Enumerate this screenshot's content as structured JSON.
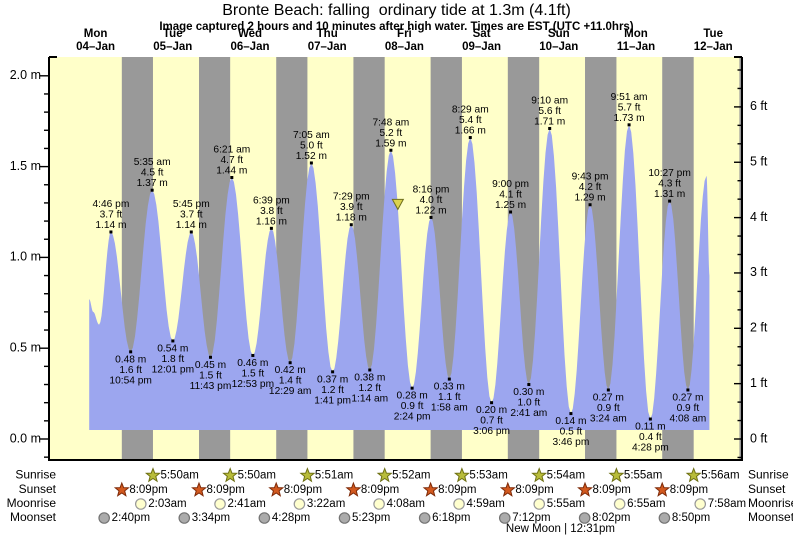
{
  "title": "Bronte Beach: falling  ordinary tide at 1.3m (4.1ft)",
  "subtitle": "Image captured 2 hours and 10 minutes after high water. Times are EST (UTC +11.0hrs)",
  "colors": {
    "page_bg": "#ffffff",
    "plot_day_bg": "#ffffc9",
    "night_band": "#999999",
    "tide_fill": "#9ca6ef",
    "axis": "#000000",
    "day_label": "#ee0000",
    "annotation_text": "#000000",
    "sunrise_fill": "#b8bc3a",
    "sunrise_stroke": "#6e7014",
    "sunset_fill": "#d2591f",
    "sunset_stroke": "#7e2a08",
    "moonrise_fill": "#ffffce",
    "moonrise_stroke": "#999999",
    "moonset_fill": "#ababab",
    "moonset_stroke": "#737373",
    "marker_fill": "#dbd34e",
    "marker_stroke": "#6f6f1e"
  },
  "chart_data": {
    "type": "area",
    "title": "Bronte Beach: falling  ordinary tide at 1.3m (4.1ft)",
    "ylabel_left": "m",
    "ylabel_right": "ft",
    "ylim_m": [
      -0.12,
      2.1
    ],
    "grid": false,
    "days": [
      {
        "name": "Mon",
        "date": "04–Jan"
      },
      {
        "name": "Tue",
        "date": "05–Jan"
      },
      {
        "name": "Wed",
        "date": "06–Jan"
      },
      {
        "name": "Thu",
        "date": "07–Jan"
      },
      {
        "name": "Fri",
        "date": "08–Jan"
      },
      {
        "name": "Sat",
        "date": "09–Jan"
      },
      {
        "name": "Sun",
        "date": "10–Jan"
      },
      {
        "name": "Mon",
        "date": "11–Jan"
      },
      {
        "name": "Tue",
        "date": "12–Jan"
      }
    ],
    "y_axis_left": {
      "unit": "m",
      "ticks": [
        {
          "label": "2.0 m",
          "value": 2.0
        },
        {
          "label": "1.5 m",
          "value": 1.5
        },
        {
          "label": "1.0 m",
          "value": 1.0
        },
        {
          "label": "0.5 m",
          "value": 0.5
        },
        {
          "label": "0.0 m",
          "value": 0.0
        }
      ],
      "minor_step": 0.1
    },
    "y_axis_right": {
      "unit": "ft",
      "ticks": [
        {
          "label": "6 ft",
          "value": 6
        },
        {
          "label": "5 ft",
          "value": 5
        },
        {
          "label": "4 ft",
          "value": 4
        },
        {
          "label": "3 ft",
          "value": 3
        },
        {
          "label": "2 ft",
          "value": 2
        },
        {
          "label": "1 ft",
          "value": 1
        },
        {
          "label": "0 ft",
          "value": 0
        }
      ]
    },
    "high_tides": [
      {
        "day": 0,
        "time": "4:46 pm",
        "ft": "3.7 ft",
        "m": "1.14 m"
      },
      {
        "day": 1,
        "time": "5:35 am",
        "ft": "4.5 ft",
        "m": "1.37 m"
      },
      {
        "day": 1,
        "time": "5:45 pm",
        "ft": "3.7 ft",
        "m": "1.14 m"
      },
      {
        "day": 2,
        "time": "6:21 am",
        "ft": "4.7 ft",
        "m": "1.44 m"
      },
      {
        "day": 2,
        "time": "6:39 pm",
        "ft": "3.8 ft",
        "m": "1.16 m"
      },
      {
        "day": 3,
        "time": "7:05 am",
        "ft": "5.0 ft",
        "m": "1.52 m"
      },
      {
        "day": 3,
        "time": "7:29 pm",
        "ft": "3.9 ft",
        "m": "1.18 m"
      },
      {
        "day": 4,
        "time": "7:48 am",
        "ft": "5.2 ft",
        "m": "1.59 m"
      },
      {
        "day": 4,
        "time": "8:16 pm",
        "ft": "4.0 ft",
        "m": "1.22 m"
      },
      {
        "day": 5,
        "time": "8:29 am",
        "ft": "5.4 ft",
        "m": "1.66 m"
      },
      {
        "day": 5,
        "time": "9:00 pm",
        "ft": "4.1 ft",
        "m": "1.25 m"
      },
      {
        "day": 6,
        "time": "9:10 am",
        "ft": "5.6 ft",
        "m": "1.71 m"
      },
      {
        "day": 6,
        "time": "9:43 pm",
        "ft": "4.2 ft",
        "m": "1.29 m"
      },
      {
        "day": 7,
        "time": "9:51 am",
        "ft": "5.7 ft",
        "m": "1.73 m"
      },
      {
        "day": 7,
        "time": "10:27 pm",
        "ft": "4.3 ft",
        "m": "1.31 m"
      }
    ],
    "low_tides": [
      {
        "day": 0,
        "time": "10:54 pm",
        "ft": "1.6 ft",
        "m": "0.48 m"
      },
      {
        "day": 1,
        "time": "12:01 pm",
        "ft": "1.8 ft",
        "m": "0.54 m"
      },
      {
        "day": 1,
        "time": "11:43 pm",
        "ft": "1.5 ft",
        "m": "0.45 m"
      },
      {
        "day": 2,
        "time": "12:53 pm",
        "ft": "1.5 ft",
        "m": "0.46 m"
      },
      {
        "day": 3,
        "time": "12:29 am",
        "ft": "1.4 ft",
        "m": "0.42 m"
      },
      {
        "day": 3,
        "time": "1:41 pm",
        "ft": "1.2 ft",
        "m": "0.37 m"
      },
      {
        "day": 4,
        "time": "1:14 am",
        "ft": "1.2 ft",
        "m": "0.38 m"
      },
      {
        "day": 4,
        "time": "2:24 pm",
        "ft": "0.9 ft",
        "m": "0.28 m"
      },
      {
        "day": 5,
        "time": "1:58 am",
        "ft": "1.1 ft",
        "m": "0.33 m"
      },
      {
        "day": 5,
        "time": "3:06 pm",
        "ft": "0.7 ft",
        "m": "0.20 m"
      },
      {
        "day": 6,
        "time": "2:41 am",
        "ft": "1.0 ft",
        "m": "0.30 m"
      },
      {
        "day": 6,
        "time": "3:46 pm",
        "ft": "0.5 ft",
        "m": "0.14 m"
      },
      {
        "day": 7,
        "time": "3:24 am",
        "ft": "0.9 ft",
        "m": "0.27 m"
      },
      {
        "day": 7,
        "time": "4:28 pm",
        "ft": "0.4 ft",
        "m": "0.11 m"
      },
      {
        "day": 8,
        "time": "4:08 am",
        "ft": "0.9 ft",
        "m": "0.27 m"
      }
    ],
    "unlabeled_curve_points": [
      {
        "day": 0,
        "time": "10:00 am",
        "m": 0.77
      },
      {
        "day": 0,
        "time": "11:15 am",
        "m": 0.7
      },
      {
        "day": 0,
        "time": "1:05 pm",
        "m": 0.63
      },
      {
        "day": 8,
        "time": "9:55 am",
        "m": 1.45
      },
      {
        "day": 8,
        "time": "10:50 am",
        "m": 0.9
      }
    ],
    "current_marker": {
      "day": 4,
      "time": "9:58 am",
      "level_m": 1.3,
      "shape": "triangle-down"
    }
  },
  "astro": {
    "rows": [
      {
        "id": "sunrise",
        "label": "Sunrise",
        "icon": "sunrise-star",
        "events": [
          {
            "day": 1,
            "time": "5:50am"
          },
          {
            "day": 2,
            "time": "5:50am"
          },
          {
            "day": 3,
            "time": "5:51am"
          },
          {
            "day": 4,
            "time": "5:52am"
          },
          {
            "day": 5,
            "time": "5:53am"
          },
          {
            "day": 6,
            "time": "5:54am"
          },
          {
            "day": 7,
            "time": "5:55am"
          },
          {
            "day": 8,
            "time": "5:56am"
          }
        ]
      },
      {
        "id": "sunset",
        "label": "Sunset",
        "icon": "sunset-star",
        "events": [
          {
            "day": 0,
            "time": "8:09pm"
          },
          {
            "day": 1,
            "time": "8:09pm"
          },
          {
            "day": 2,
            "time": "8:09pm"
          },
          {
            "day": 3,
            "time": "8:09pm"
          },
          {
            "day": 4,
            "time": "8:09pm"
          },
          {
            "day": 5,
            "time": "8:09pm"
          },
          {
            "day": 6,
            "time": "8:09pm"
          },
          {
            "day": 7,
            "time": "8:09pm"
          }
        ]
      },
      {
        "id": "moonrise",
        "label": "Moonrise",
        "icon": "moonrise-circle",
        "events": [
          {
            "day": 1,
            "time": "2:03am"
          },
          {
            "day": 2,
            "time": "2:41am"
          },
          {
            "day": 3,
            "time": "3:22am"
          },
          {
            "day": 4,
            "time": "4:08am"
          },
          {
            "day": 5,
            "time": "4:59am"
          },
          {
            "day": 6,
            "time": "5:55am"
          },
          {
            "day": 7,
            "time": "6:55am"
          },
          {
            "day": 8,
            "time": "7:58am"
          }
        ]
      },
      {
        "id": "moonset",
        "label": "Moonset",
        "icon": "moonset-circle",
        "events": [
          {
            "day": 0,
            "time": "2:40pm"
          },
          {
            "day": 1,
            "time": "3:34pm"
          },
          {
            "day": 2,
            "time": "4:28pm"
          },
          {
            "day": 3,
            "time": "5:23pm"
          },
          {
            "day": 4,
            "time": "6:18pm"
          },
          {
            "day": 5,
            "time": "7:12pm"
          },
          {
            "day": 6,
            "time": "8:02pm"
          },
          {
            "day": 7,
            "time": "8:50pm"
          }
        ]
      }
    ],
    "moon_phase": {
      "label": "New Moon",
      "time": "12:31pm",
      "day": 6
    }
  }
}
